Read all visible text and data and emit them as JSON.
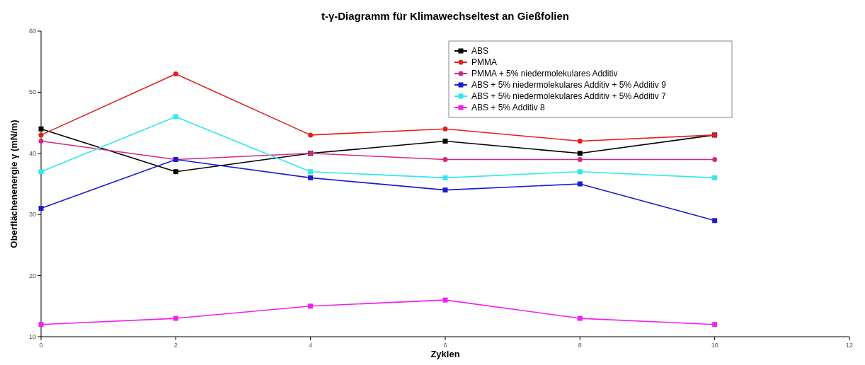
{
  "chart_data": {
    "type": "line",
    "title": "t-γ-Diagramm für Klimawechseltest an Gießfolien",
    "xlabel": "Zyklen",
    "ylabel": "Oberflächenenergie γ (mN/m)",
    "x": [
      0,
      2,
      4,
      6,
      8,
      10
    ],
    "xlim": [
      0,
      12
    ],
    "xticks": [
      0,
      2,
      4,
      6,
      8,
      10,
      12
    ],
    "ylim": [
      10,
      60
    ],
    "yticks": [
      10,
      20,
      30,
      40,
      50,
      60
    ],
    "grid": false,
    "legend": "top right",
    "series": [
      {
        "name": "ABS",
        "color": "#000000",
        "marker": "square",
        "values": [
          44,
          37,
          40,
          42,
          40,
          43
        ]
      },
      {
        "name": "PMMA",
        "color": "#e0201c",
        "marker": "circle",
        "values": [
          43,
          53,
          43,
          44,
          42,
          43
        ]
      },
      {
        "name": "PMMA + 5% niedermolekulares Additiv",
        "color": "#d02a80",
        "marker": "circle",
        "values": [
          42,
          39,
          40,
          39,
          39,
          39
        ]
      },
      {
        "name": "ABS + 5% niedermolekulares Additiv + 5% Additiv 9",
        "color": "#1c1cd0",
        "marker": "square",
        "values": [
          31,
          39,
          36,
          34,
          35,
          29
        ]
      },
      {
        "name": "ABS + 5% niedermolekulares Additiv + 5% Additiv 7",
        "color": "#30e8e8",
        "marker": "square",
        "values": [
          37,
          46,
          37,
          36,
          37,
          36
        ]
      },
      {
        "name": "ABS + 5% Additiv 8",
        "color": "#f020f0",
        "marker": "square",
        "values": [
          12,
          13,
          15,
          16,
          13,
          12
        ]
      }
    ]
  }
}
